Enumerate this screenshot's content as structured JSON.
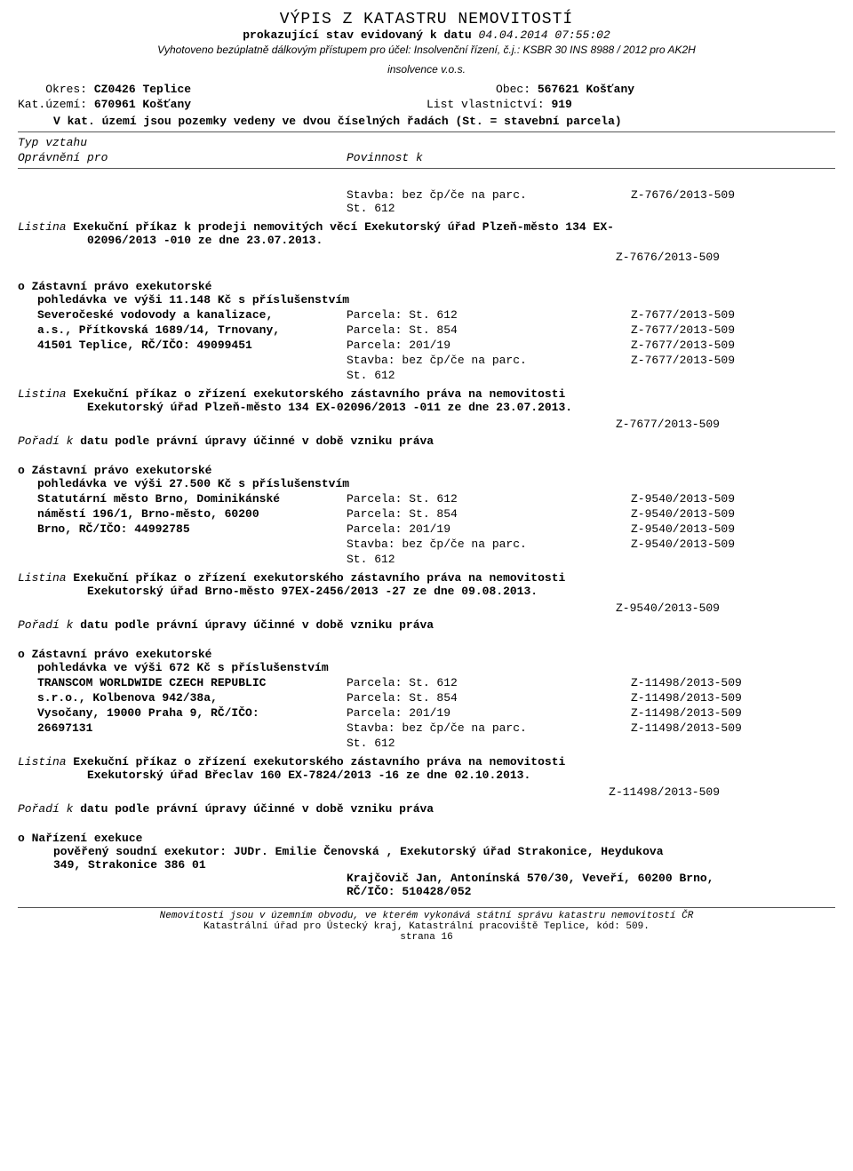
{
  "header": {
    "title": "VÝPIS Z KATASTRU NEMOVITOSTÍ",
    "subtitle_prefix": "prokazující stav evidovaný k datu",
    "subtitle_date": "04.04.2014 07:55:02",
    "purpose_line1": "Vyhotoveno bezúplatně dálkovým přístupem pro účel: Insolvenční řízení, č.j.: KSBR 30 INS 8988 / 2012 pro AK2H",
    "purpose_line2": "insolvence v.o.s.",
    "okres_label": "Okres:",
    "okres_value": "CZ0426 Teplice",
    "obec_label": "Obec:",
    "obec_value": "567621 Košťany",
    "katuzemi_label": "Kat.území:",
    "katuzemi_value": "670961 Košťany",
    "lv_label": "List vlastnictví:",
    "lv_value": "919",
    "note": "V kat. území jsou pozemky vedeny ve dvou číselných řadách  (St. = stavební parcela)"
  },
  "section_header": {
    "typ_vztahu": "Typ vztahu",
    "opravneni_pro": "Oprávnění pro",
    "povinnost_k": "Povinnost k"
  },
  "block0": {
    "stavba": "Stavba: bez čp/če na parc.",
    "st": "St.  612",
    "z": "Z-7676/2013-509",
    "listina_label": "Listina",
    "listina_text1": "Exekuční příkaz k prodeji nemovitých věcí Exekutorský úřad Plzeň-město 134 EX-",
    "listina_text2": "02096/2013 -010 ze dne 23.07.2013.",
    "z_bottom": "Z-7676/2013-509"
  },
  "block1": {
    "title": "Zástavní právo exekutorské",
    "claim": "pohledávka ve výši 11.148 Kč s příslušenstvím",
    "creditor_l1": "Severočeské vodovody a kanalizace,",
    "creditor_l2": "a.s., Přítkovská 1689/14, Trnovany,",
    "creditor_l3": "41501 Teplice, RČ/IČO: 49099451",
    "rows": [
      {
        "p": "Parcela: St.  612",
        "z": "Z-7677/2013-509"
      },
      {
        "p": "Parcela: St.  854",
        "z": "Z-7677/2013-509"
      },
      {
        "p": "Parcela:   201/19",
        "z": "Z-7677/2013-509"
      },
      {
        "p": "Stavba: bez čp/če na parc.",
        "z": "Z-7677/2013-509"
      }
    ],
    "st_extra": "St.  612",
    "listina_label": "Listina",
    "listina_text1": "Exekuční příkaz o zřízení exekutorského zástavního práva na nemovitosti",
    "listina_text2": "Exekutorský úřad Plzeň-město 134 EX-02096/2013 -011 ze dne 23.07.2013.",
    "z_bottom": "Z-7677/2013-509",
    "poradi_label": "Pořadí k",
    "poradi_text": "datu podle právní úpravy účinné v době vzniku práva"
  },
  "block2": {
    "title": "Zástavní právo exekutorské",
    "claim": "pohledávka ve výši 27.500 Kč s příslušenstvím",
    "creditor_l1": "Statutární město Brno, Dominikánské",
    "creditor_l2": "náměstí 196/1, Brno-město, 60200",
    "creditor_l3": "Brno, RČ/IČO: 44992785",
    "rows": [
      {
        "p": "Parcela: St.  612",
        "z": "Z-9540/2013-509"
      },
      {
        "p": "Parcela: St.  854",
        "z": "Z-9540/2013-509"
      },
      {
        "p": "Parcela:   201/19",
        "z": "Z-9540/2013-509"
      },
      {
        "p": "Stavba: bez čp/če na parc.",
        "z": "Z-9540/2013-509"
      }
    ],
    "st_extra": "St.  612",
    "listina_label": "Listina",
    "listina_text1": "Exekuční příkaz o zřízení exekutorského zástavního práva na nemovitosti",
    "listina_text2": "Exekutorský úřad Brno-město 97EX-2456/2013 -27 ze dne 09.08.2013.",
    "z_bottom": "Z-9540/2013-509",
    "poradi_label": "Pořadí k",
    "poradi_text": "datu podle právní úpravy účinné v době vzniku práva"
  },
  "block3": {
    "title": "Zástavní právo exekutorské",
    "claim": "pohledávka ve výši 672 Kč s příslušenstvím",
    "creditor_l1": "TRANSCOM WORLDWIDE CZECH REPUBLIC",
    "creditor_l2": "s.r.o., Kolbenova 942/38a,",
    "creditor_l3": "Vysočany, 19000 Praha 9, RČ/IČO:",
    "creditor_l4": "26697131",
    "rows": [
      {
        "p": "Parcela: St.  612",
        "z": "Z-11498/2013-509"
      },
      {
        "p": "Parcela: St.  854",
        "z": "Z-11498/2013-509"
      },
      {
        "p": "Parcela:   201/19",
        "z": "Z-11498/2013-509"
      },
      {
        "p": "Stavba: bez čp/če na parc.",
        "z": "Z-11498/2013-509"
      }
    ],
    "st_extra": "St.  612",
    "listina_label": "Listina",
    "listina_text1": "Exekuční příkaz o zřízení exekutorského zástavního práva na nemovitosti",
    "listina_text2": "Exekutorský úřad Břeclav 160 EX-7824/2013 -16 ze dne 02.10.2013.",
    "z_bottom": "Z-11498/2013-509",
    "poradi_label": "Pořadí k",
    "poradi_text": "datu podle právní úpravy účinné v době vzniku práva"
  },
  "block4": {
    "title": "Nařízení exekuce",
    "line1": "pověřený soudní exekutor: JUDr. Emilie Čenovská , Exekutorský úřad Strakonice, Heydukova",
    "line2": "349, Strakonice 386 01",
    "sub1": "Krajčovič Jan, Antonínská 570/30, Veveří, 60200 Brno,",
    "sub2": "RČ/IČO: 510428/052"
  },
  "footer": {
    "l1": "Nemovitosti jsou v územním obvodu, ve kterém vykonává státní správu katastru nemovitostí ČR",
    "l2": "Katastrální úřad pro Ústecký kraj, Katastrální pracoviště Teplice, kód: 509.",
    "l3": "strana 16"
  }
}
